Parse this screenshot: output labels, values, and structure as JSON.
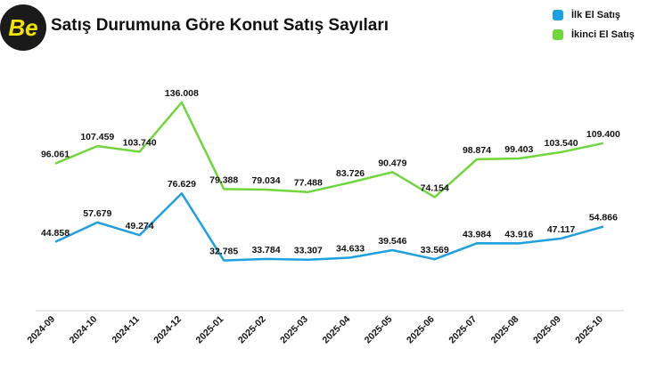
{
  "logo": {
    "text": "Be",
    "color": "#f2e200"
  },
  "chart_data": {
    "type": "line",
    "title": "Satış Durumuna Göre Konut Satış Sayıları",
    "categories": [
      "2024-09",
      "2024-10",
      "2024-11",
      "2024-12",
      "2025-01",
      "2025-02",
      "2025-03",
      "2025-04",
      "2025-05",
      "2025-06",
      "2025-07",
      "2025-08",
      "2025-09",
      "2025-10"
    ],
    "series": [
      {
        "name": "İlk El Satış",
        "color": "#1ea0e0",
        "values": [
          44858,
          57679,
          49274,
          76629,
          32785,
          33784,
          33307,
          34633,
          39546,
          33569,
          43984,
          43916,
          47117,
          54866
        ],
        "labels": [
          "44.858",
          "57.679",
          "49.274",
          "76.629",
          "32.785",
          "33.784",
          "33.307",
          "34.633",
          "39.546",
          "33.569",
          "43.984",
          "43.916",
          "47.117",
          "54.866"
        ]
      },
      {
        "name": "İkinci El Satış",
        "color": "#6fd63c",
        "values": [
          96061,
          107459,
          103740,
          136008,
          79388,
          79034,
          77488,
          83726,
          90479,
          74154,
          98874,
          99403,
          103540,
          109400
        ],
        "labels": [
          "96.061",
          "107.459",
          "103.740",
          "136.008",
          "79.388",
          "79.034",
          "77.488",
          "83.726",
          "90.479",
          "74.154",
          "98.874",
          "99.403",
          "103.540",
          "109.400"
        ]
      }
    ],
    "legend_position": "top-right",
    "grid": false
  }
}
